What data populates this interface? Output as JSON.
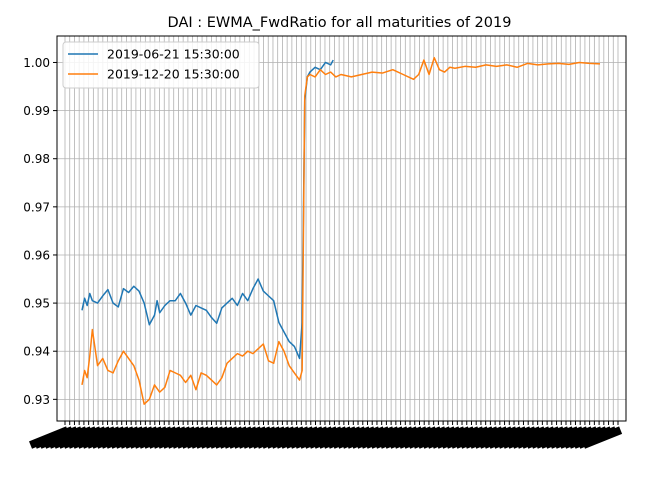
{
  "chart_data": {
    "type": "line",
    "title": "DAI : EWMA_FwdRatio for all maturities of 2019",
    "xlabel": "",
    "ylabel": "",
    "ylim": [
      0.9255,
      1.0055
    ],
    "yticks": [
      "0.93",
      "0.94",
      "0.95",
      "0.96",
      "0.97",
      "0.98",
      "0.99",
      "1.00"
    ],
    "ytick_values": [
      0.93,
      0.94,
      0.95,
      0.96,
      0.97,
      0.98,
      0.99,
      1.0
    ],
    "x_index_range": [
      0,
      100
    ],
    "grid": true,
    "legend_position": "top-left",
    "series": [
      {
        "name": "2019-06-21 15:30:00",
        "color": "#1f77b4",
        "x": [
          0,
          0.5,
          1,
          1.5,
          2,
          3,
          4,
          5,
          6,
          7,
          8,
          9,
          10,
          11,
          12,
          13,
          14,
          14.5,
          15,
          16,
          17,
          18,
          19,
          20,
          21,
          22,
          23,
          24,
          25,
          26,
          27,
          28,
          29,
          30,
          31,
          32,
          33,
          34,
          35,
          36,
          37,
          38,
          39,
          40,
          41,
          42,
          42.5,
          43,
          43.5,
          44,
          45,
          46,
          47,
          48,
          48.5
        ],
        "values": [
          0.9485,
          0.951,
          0.9495,
          0.952,
          0.9505,
          0.95,
          0.9515,
          0.9528,
          0.95,
          0.9492,
          0.953,
          0.9522,
          0.9535,
          0.9525,
          0.95,
          0.9455,
          0.9475,
          0.9505,
          0.948,
          0.9495,
          0.9505,
          0.9505,
          0.952,
          0.95,
          0.9475,
          0.9495,
          0.949,
          0.9485,
          0.947,
          0.9458,
          0.949,
          0.95,
          0.951,
          0.9495,
          0.952,
          0.9505,
          0.953,
          0.955,
          0.9525,
          0.9515,
          0.9505,
          0.946,
          0.944,
          0.942,
          0.941,
          0.9385,
          0.946,
          0.992,
          0.997,
          0.998,
          0.999,
          0.9985,
          1.0,
          0.9995,
          1.0005
        ]
      },
      {
        "name": "2019-12-20 15:30:00",
        "color": "#ff7f0e",
        "x": [
          0,
          0.5,
          1,
          1.5,
          2,
          3,
          4,
          5,
          6,
          7,
          8,
          9,
          10,
          11,
          12,
          13,
          14,
          15,
          16,
          17,
          18,
          19,
          20,
          21,
          22,
          23,
          24,
          25,
          26,
          27,
          28,
          29,
          30,
          31,
          32,
          33,
          34,
          35,
          36,
          37,
          38,
          39,
          40,
          41,
          42,
          42.5,
          43,
          43.5,
          44,
          45,
          46,
          47,
          48,
          49,
          50,
          52,
          54,
          56,
          58,
          60,
          62,
          64,
          65,
          66,
          67,
          68,
          69,
          70,
          71,
          72,
          74,
          76,
          78,
          80,
          82,
          84,
          86,
          88,
          90,
          92,
          94,
          96,
          98,
          100
        ],
        "values": [
          0.933,
          0.936,
          0.9345,
          0.939,
          0.9445,
          0.937,
          0.9385,
          0.936,
          0.9355,
          0.938,
          0.94,
          0.9385,
          0.937,
          0.934,
          0.929,
          0.93,
          0.933,
          0.9315,
          0.9325,
          0.936,
          0.9355,
          0.935,
          0.9335,
          0.935,
          0.932,
          0.9355,
          0.935,
          0.934,
          0.933,
          0.9345,
          0.9375,
          0.9385,
          0.9395,
          0.939,
          0.94,
          0.9395,
          0.9405,
          0.9415,
          0.938,
          0.9375,
          0.942,
          0.94,
          0.937,
          0.9355,
          0.934,
          0.936,
          0.993,
          0.997,
          0.9975,
          0.997,
          0.9985,
          0.9975,
          0.998,
          0.997,
          0.9975,
          0.997,
          0.9975,
          0.998,
          0.9978,
          0.9985,
          0.9975,
          0.9965,
          0.9975,
          1.0005,
          0.9975,
          1.001,
          0.9985,
          0.998,
          0.999,
          0.9988,
          0.9992,
          0.999,
          0.9995,
          0.9992,
          0.9995,
          0.999,
          0.9998,
          0.9995,
          0.9997,
          0.9998,
          0.9996,
          1.0,
          0.9998,
          0.9997
        ]
      }
    ]
  }
}
